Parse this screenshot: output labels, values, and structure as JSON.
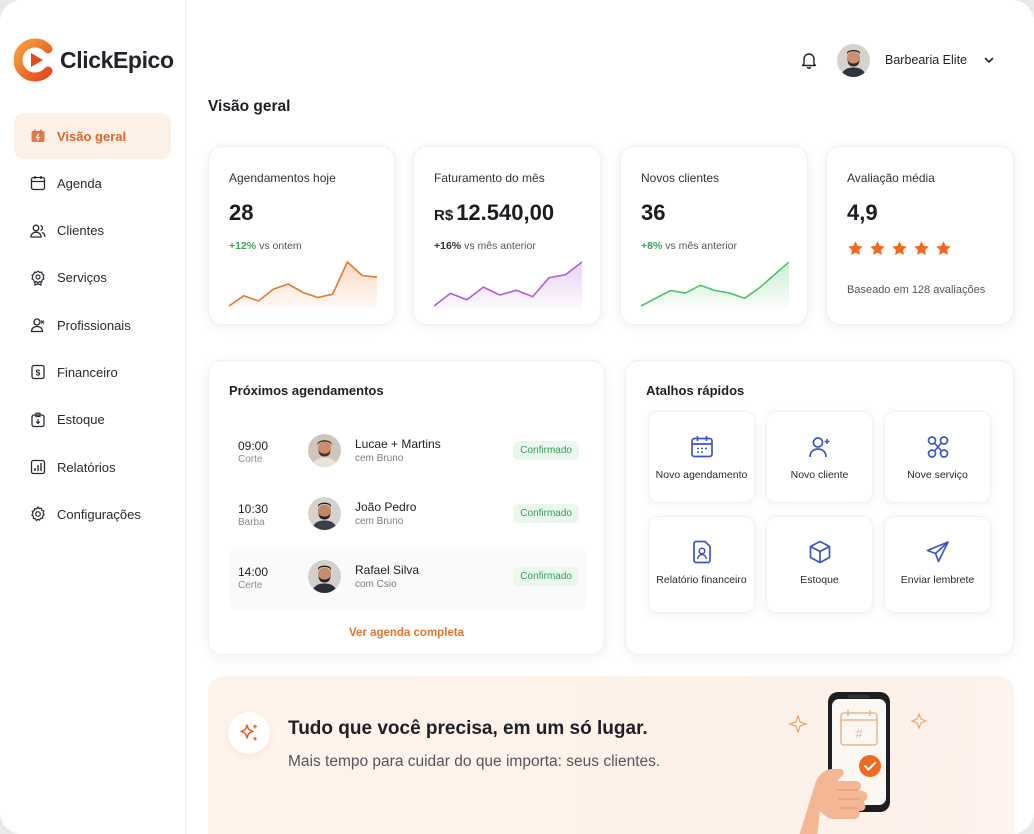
{
  "brand": {
    "name": "ClickEpico",
    "accent": "#e2642c"
  },
  "sidebar": {
    "items": [
      {
        "label": "Visão geral",
        "icon": "dashboard-icon",
        "active": true
      },
      {
        "label": "Agenda",
        "icon": "calendar-icon"
      },
      {
        "label": "Clientes",
        "icon": "users-icon"
      },
      {
        "label": "Serviços",
        "icon": "services-icon"
      },
      {
        "label": "Profissionais",
        "icon": "professional-icon"
      },
      {
        "label": "Financeiro",
        "icon": "money-icon"
      },
      {
        "label": "Estoque",
        "icon": "box-icon"
      },
      {
        "label": "Relatórios",
        "icon": "report-icon"
      },
      {
        "label": "Configurações",
        "icon": "gear-icon"
      }
    ]
  },
  "header": {
    "user_name": "Barbearia Elite",
    "bell_icon": "bell-icon"
  },
  "page": {
    "title": "Visão geral"
  },
  "stats": [
    {
      "label": "Agendamentos hoje",
      "value": "28",
      "delta": "+12%",
      "delta_text": "vs ontem",
      "color": "#e8782e",
      "trend": [
        12,
        18,
        15,
        22,
        25,
        20,
        17,
        19,
        38,
        30,
        29
      ]
    },
    {
      "label": "Faturamento do mês",
      "currency": "R$",
      "value": "12.540,00",
      "delta": "+16%",
      "delta_text": "vs mês anterior",
      "color": "#b15fd6",
      "trend": [
        10,
        18,
        14,
        22,
        17,
        20,
        16,
        28,
        30,
        38
      ]
    },
    {
      "label": "Novos clientes",
      "value": "36",
      "delta": "+8%",
      "delta_text": "vs mês anterior",
      "color": "#4cc36a",
      "trend": [
        8,
        14,
        20,
        18,
        24,
        20,
        18,
        14,
        22,
        32,
        42
      ]
    },
    {
      "label": "Avaliação média",
      "value": "4,9",
      "rating": 5,
      "note": "Baseado em 128 avaliações",
      "star_color": "#f06a24"
    }
  ],
  "appointments": {
    "title": "Próximos agendamentos",
    "items": [
      {
        "time": "09:00",
        "service": "Corte",
        "client": "Lucae + Martins",
        "professional": "cem Bruno",
        "status": "Confirmado"
      },
      {
        "time": "10:30",
        "service": "Barba",
        "client": "João Pedro",
        "professional": "cem Bruno",
        "status": "Confirmado"
      },
      {
        "time": "14:00",
        "service": "Certe",
        "client": "Rafael Silva",
        "professional": "com Csio",
        "status": "Confirmado"
      }
    ],
    "more_label": "Ver agenda completa"
  },
  "shortcuts": {
    "title": "Atalhos rápidos",
    "items": [
      {
        "label": "Novo agendamento",
        "icon": "calendar-icon"
      },
      {
        "label": "Novo cliente",
        "icon": "add-user-icon"
      },
      {
        "label": "Nove serviço",
        "icon": "scissors-icon"
      },
      {
        "label": "Relatório financeiro",
        "icon": "finance-report-icon"
      },
      {
        "label": "Estoque",
        "icon": "box-icon"
      },
      {
        "label": "Enviar lembrete",
        "icon": "send-icon"
      }
    ]
  },
  "banner": {
    "title": "Tudo que você precisa, em um só lugar.",
    "subtitle": "Mais tempo para cuidar do que importa: seus clientes."
  }
}
